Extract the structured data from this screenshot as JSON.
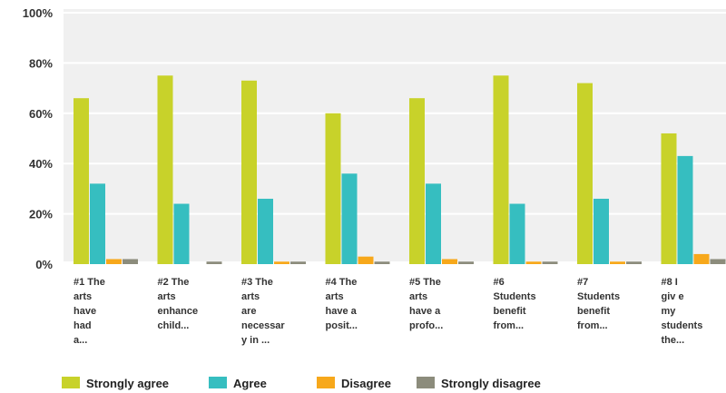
{
  "chart_data": {
    "type": "bar",
    "ylim": [
      0,
      100
    ],
    "yticks": [
      "0%",
      "20%",
      "40%",
      "60%",
      "80%",
      "100%"
    ],
    "categories": [
      [
        "#1 The",
        "arts",
        "have",
        "had",
        "a..."
      ],
      [
        "#2 The",
        "arts",
        "enhance",
        "child..."
      ],
      [
        "#3 The",
        "arts",
        "are",
        "necessar",
        "y in ..."
      ],
      [
        "#4 The",
        "arts",
        "have a",
        "posit..."
      ],
      [
        "#5 The",
        "arts",
        "have a",
        "profo..."
      ],
      [
        "#6",
        "Students",
        "benefit",
        "from..."
      ],
      [
        "#7",
        "Students",
        "benefit",
        "from..."
      ],
      [
        "#8 I",
        "giv e",
        "my",
        "students",
        "the..."
      ]
    ],
    "series": [
      {
        "name": "Strongly agree",
        "color": "#c8d22a",
        "values": [
          66,
          75,
          73,
          60,
          66,
          75,
          72,
          52
        ]
      },
      {
        "name": "Agree",
        "color": "#36bec0",
        "values": [
          32,
          24,
          26,
          36,
          32,
          24,
          26,
          43
        ]
      },
      {
        "name": "Disagree",
        "color": "#f7a81b",
        "values": [
          2,
          0,
          1,
          3,
          2,
          1,
          1,
          4
        ]
      },
      {
        "name": "Strongly disagree",
        "color": "#8c8c7c",
        "values": [
          2,
          1,
          1,
          1,
          1,
          1,
          1,
          2
        ]
      }
    ],
    "grid": true,
    "legend": "bottom"
  }
}
